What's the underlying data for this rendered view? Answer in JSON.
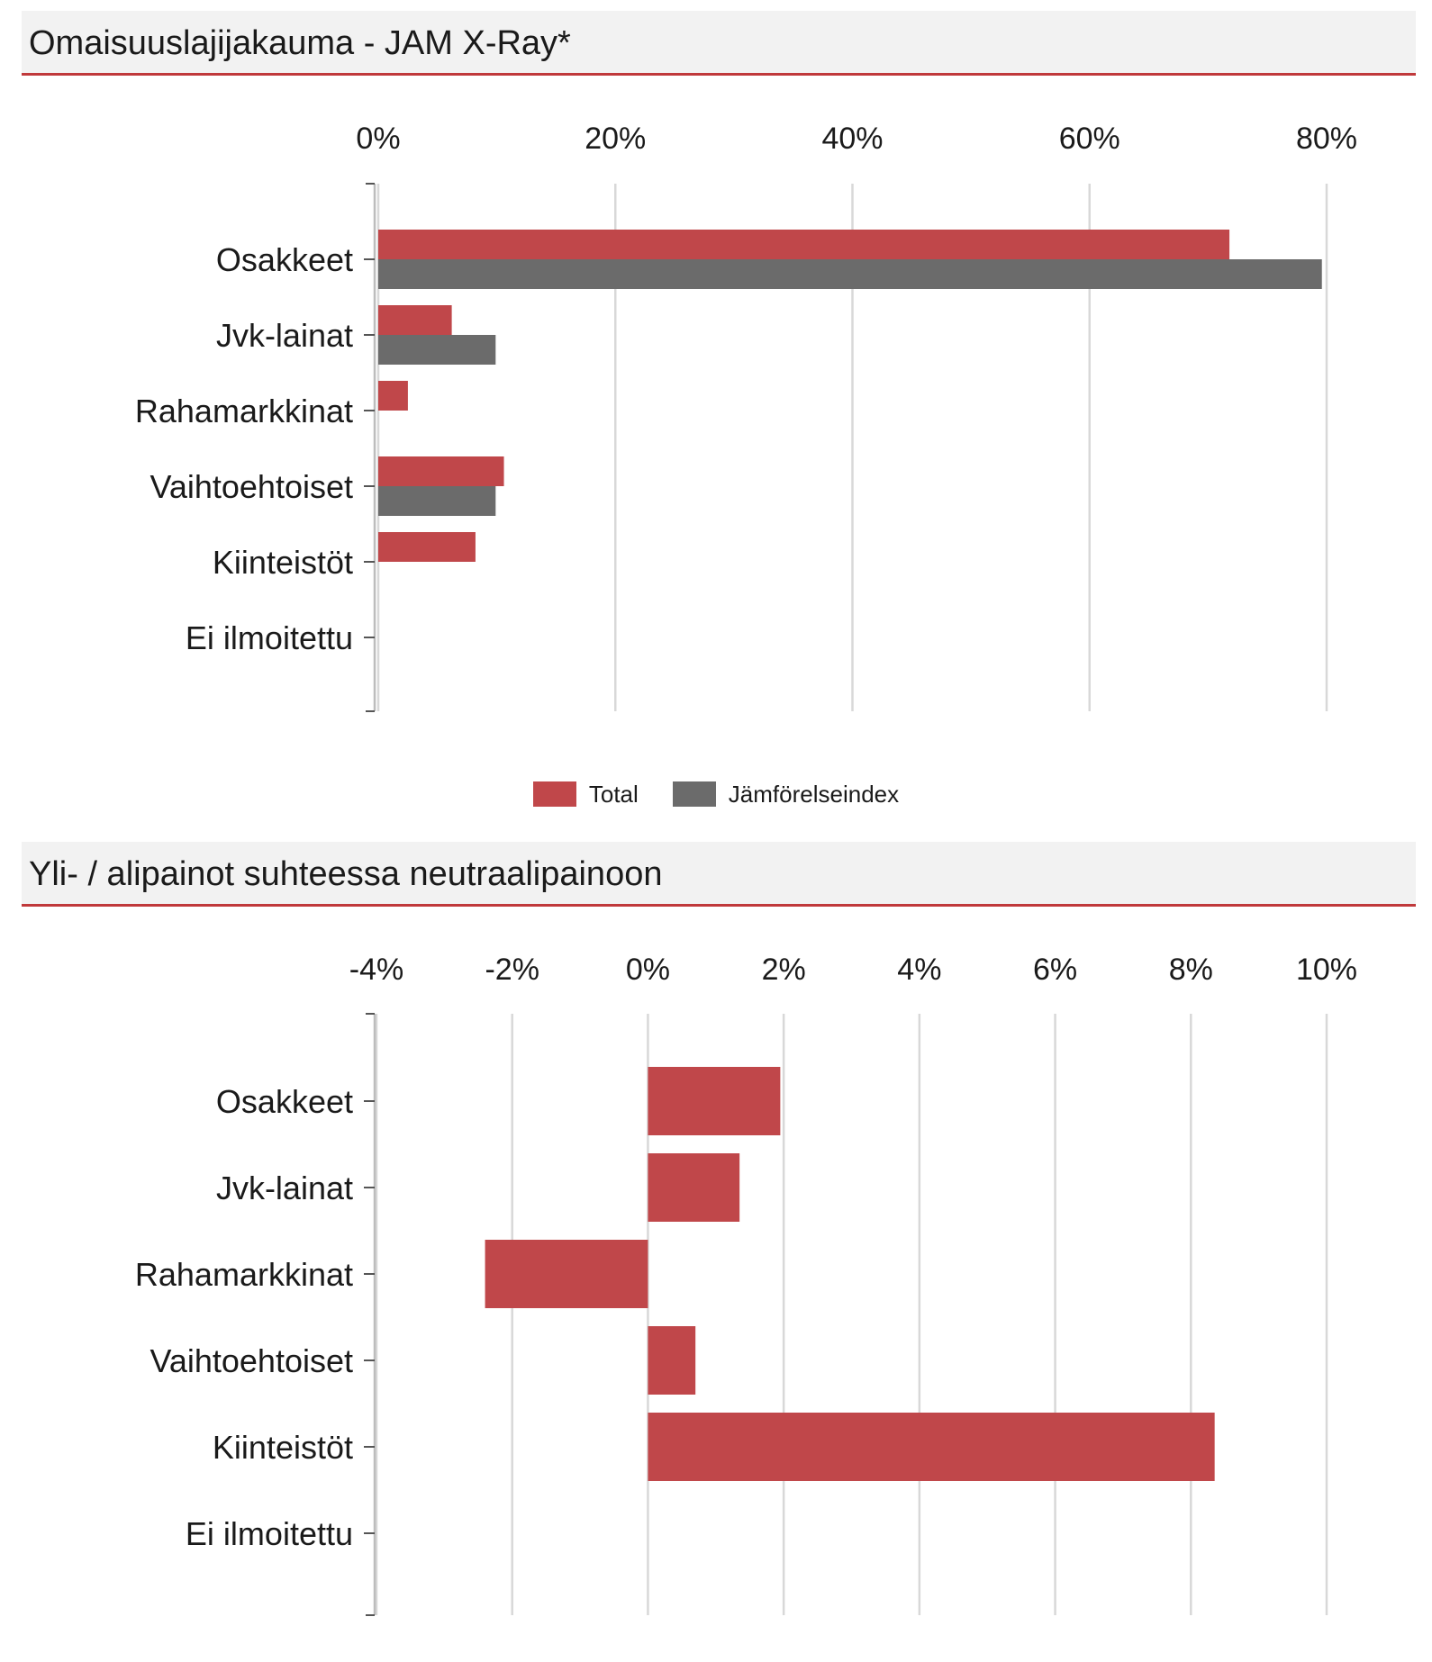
{
  "panels": [
    {
      "title": "Omaisuuslajijakauma - JAM X-Ray*"
    },
    {
      "title": "Yli- / alipainot suhteessa neutraalipainoon"
    }
  ],
  "colors": {
    "accent": "#c0393b",
    "total": "#c0474a",
    "index": "#6b6b6b",
    "grid": "#d8d8d8",
    "header_bg": "#f2f2f2"
  },
  "chart_data": [
    {
      "type": "bar",
      "orientation": "horizontal",
      "title": "Omaisuuslajijakauma - JAM X-Ray*",
      "categories": [
        "Osakkeet",
        "Jvk-lainat",
        "Rahamarkkinat",
        "Vaihtoehtoiset",
        "Kiinteistöt",
        "Ei ilmoitettu"
      ],
      "series": [
        {
          "name": "Total",
          "values": [
            71.8,
            6.2,
            2.5,
            10.6,
            8.2,
            0
          ]
        },
        {
          "name": "Jämförelseindex",
          "values": [
            79.6,
            9.9,
            null,
            9.9,
            null,
            null
          ]
        }
      ],
      "xlim": [
        0,
        80
      ],
      "ticks": [
        0,
        20,
        40,
        60,
        80
      ],
      "tick_labels": [
        "0%",
        "20%",
        "40%",
        "60%",
        "80%"
      ],
      "axis_position": "top",
      "grid": true,
      "legend": "bottom-center"
    },
    {
      "type": "bar",
      "orientation": "horizontal",
      "title": "Yli- / alipainot suhteessa neutraalipainoon",
      "categories": [
        "Osakkeet",
        "Jvk-lainat",
        "Rahamarkkinat",
        "Vaihtoehtoiset",
        "Kiinteistöt",
        "Ei ilmoitettu"
      ],
      "series": [
        {
          "values": [
            1.95,
            1.35,
            -2.4,
            0.7,
            8.35,
            0
          ]
        }
      ],
      "xlim": [
        -4,
        10
      ],
      "ticks": [
        -4,
        -2,
        0,
        2,
        4,
        6,
        8,
        10
      ],
      "tick_labels": [
        "-4%",
        "-2%",
        "0%",
        "2%",
        "4%",
        "6%",
        "8%",
        "10%"
      ],
      "axis_position": "top",
      "grid": true,
      "legend": "none"
    }
  ]
}
